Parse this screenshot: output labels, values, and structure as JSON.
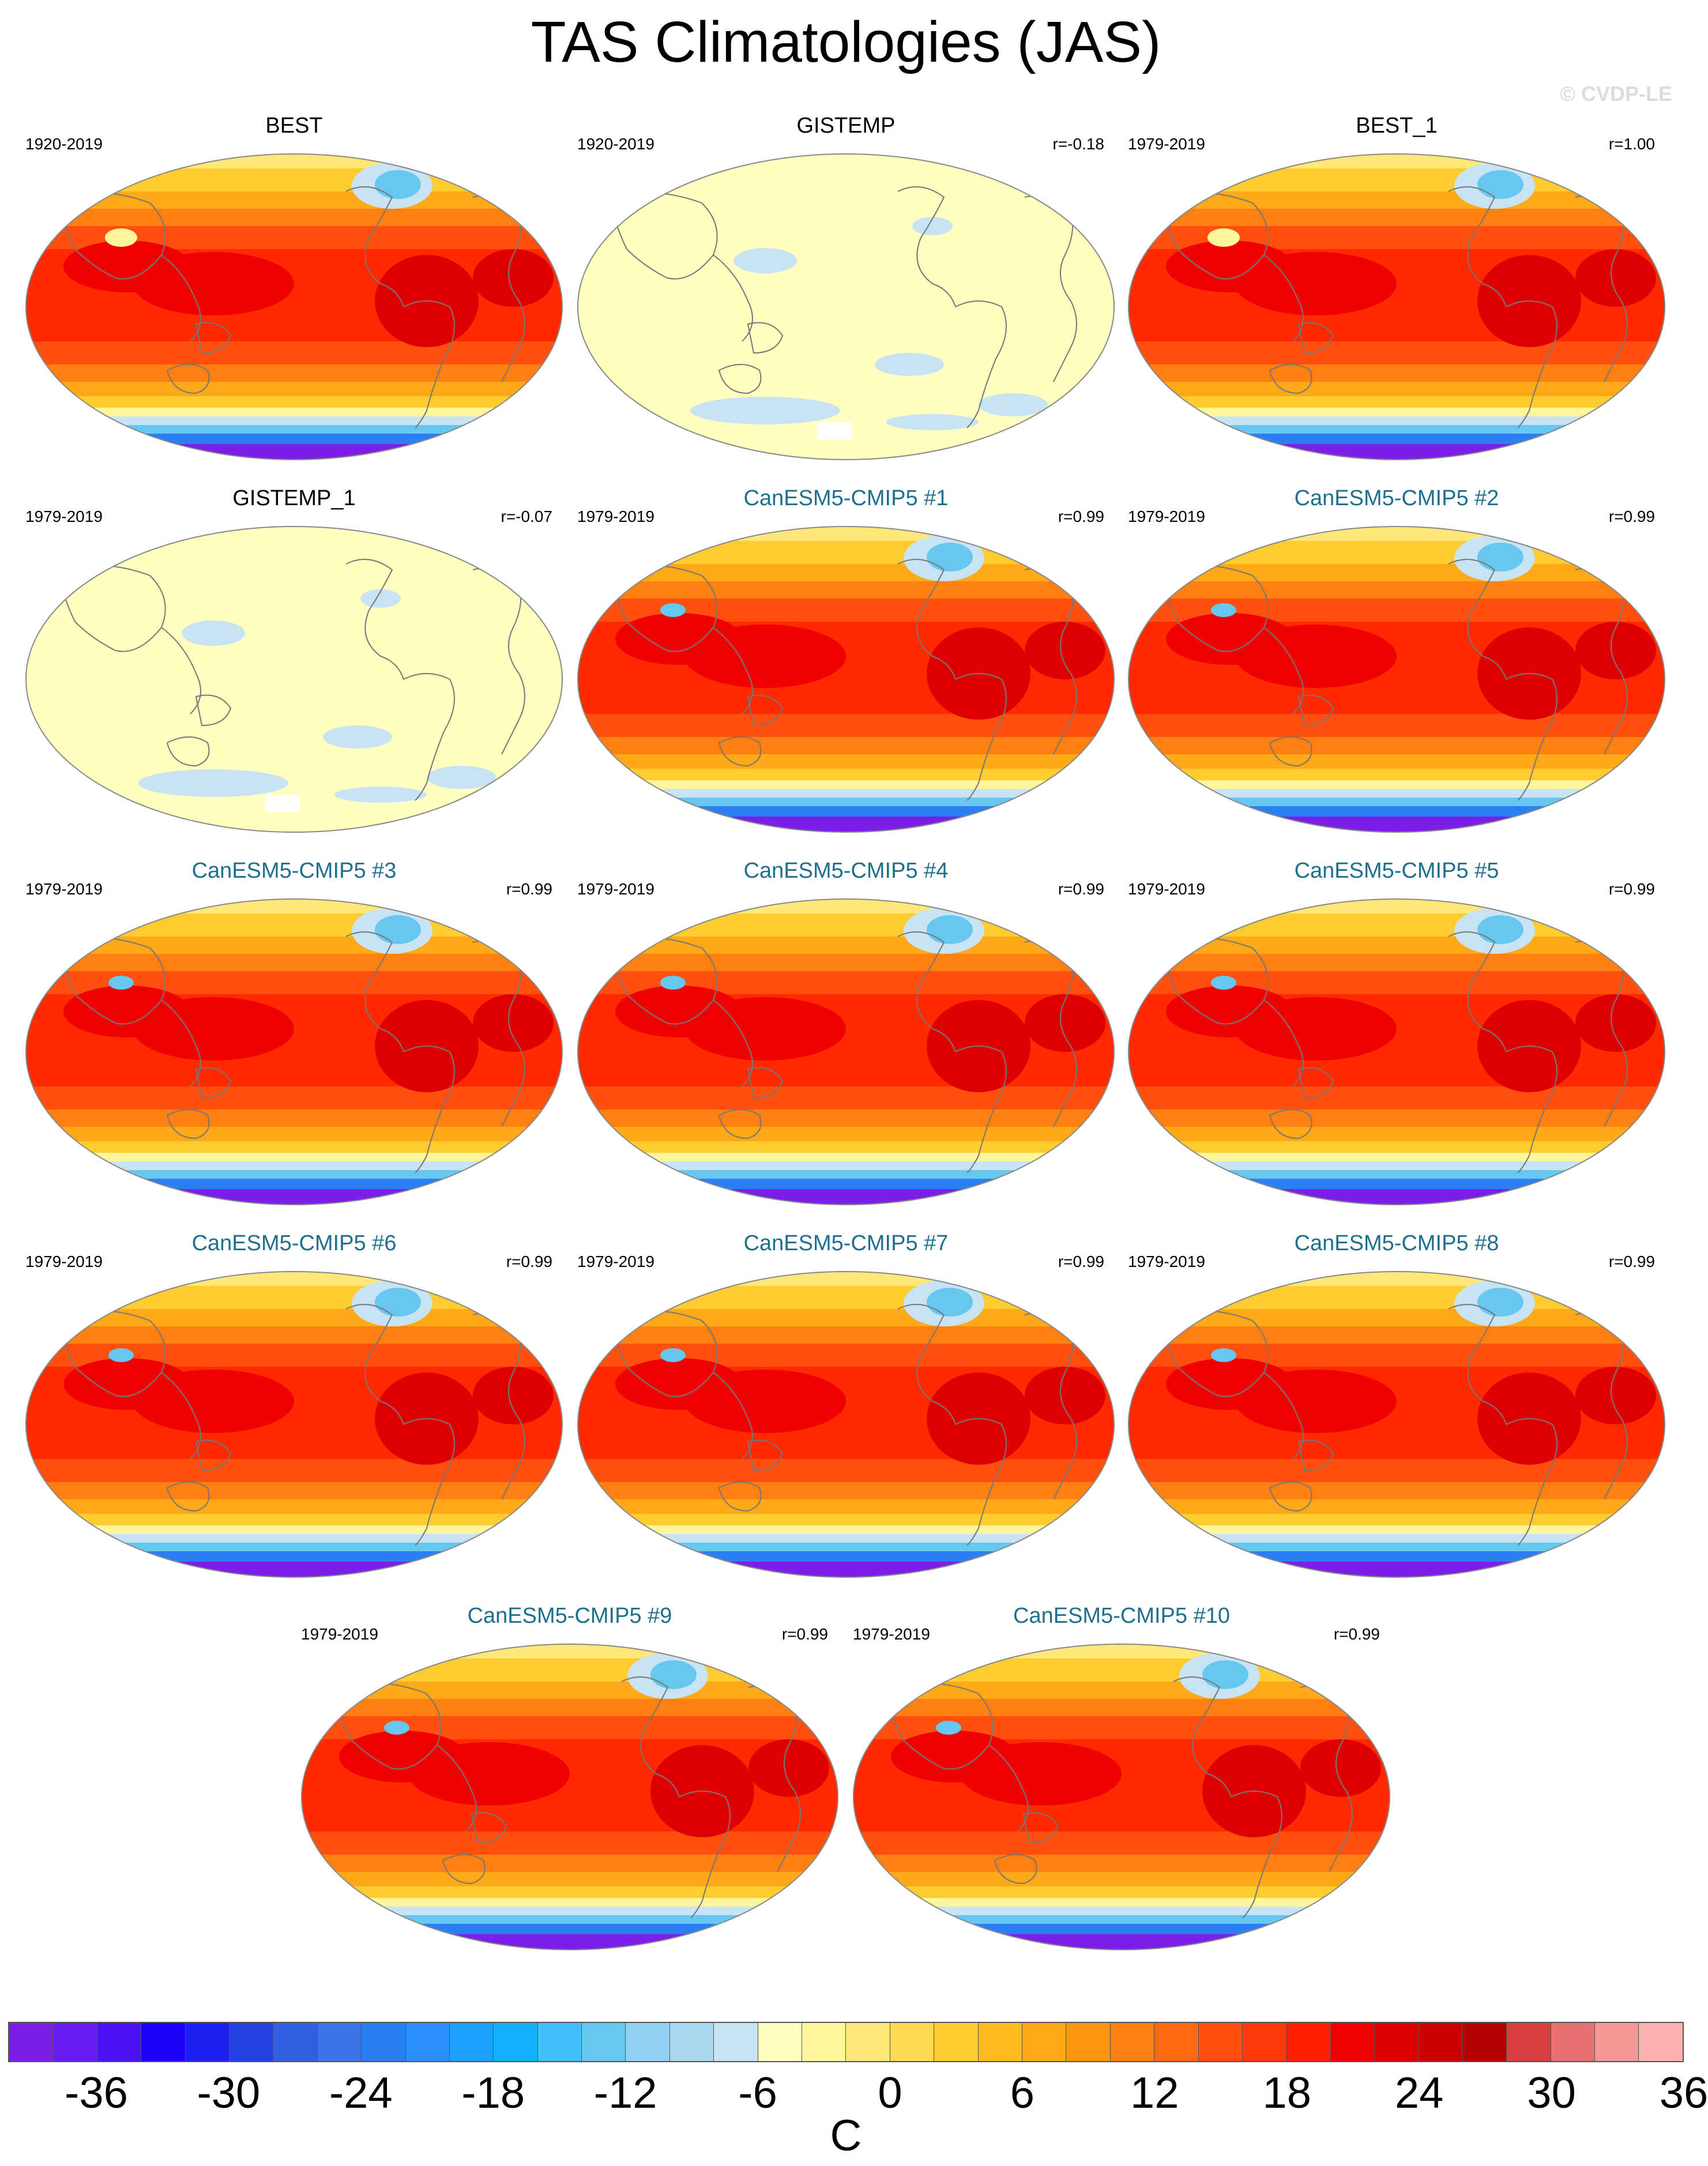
{
  "title": "TAS Climatologies (JAS)",
  "watermark": "© CVDP-LE",
  "colors": {
    "model_title": "#1e6f8e",
    "obs_title": "#000000"
  },
  "panels": [
    {
      "name": "BEST",
      "kind": "obs",
      "period": "1920-2019",
      "corr": "",
      "pattern": "obs-full"
    },
    {
      "name": "GISTEMP",
      "kind": "obs",
      "period": "1920-2019",
      "corr": "r=-0.18",
      "pattern": "anomaly"
    },
    {
      "name": "BEST_1",
      "kind": "obs",
      "period": "1979-2019",
      "corr": "r=1.00",
      "pattern": "obs-full"
    },
    {
      "name": "GISTEMP_1",
      "kind": "obs",
      "period": "1979-2019",
      "corr": "r=-0.07",
      "pattern": "anomaly"
    },
    {
      "name": "CanESM5-CMIP5 #1",
      "kind": "model",
      "period": "1979-2019",
      "corr": "r=0.99",
      "pattern": "model"
    },
    {
      "name": "CanESM5-CMIP5 #2",
      "kind": "model",
      "period": "1979-2019",
      "corr": "r=0.99",
      "pattern": "model"
    },
    {
      "name": "CanESM5-CMIP5 #3",
      "kind": "model",
      "period": "1979-2019",
      "corr": "r=0.99",
      "pattern": "model"
    },
    {
      "name": "CanESM5-CMIP5 #4",
      "kind": "model",
      "period": "1979-2019",
      "corr": "r=0.99",
      "pattern": "model"
    },
    {
      "name": "CanESM5-CMIP5 #5",
      "kind": "model",
      "period": "1979-2019",
      "corr": "r=0.99",
      "pattern": "model"
    },
    {
      "name": "CanESM5-CMIP5 #6",
      "kind": "model",
      "period": "1979-2019",
      "corr": "r=0.99",
      "pattern": "model"
    },
    {
      "name": "CanESM5-CMIP5 #7",
      "kind": "model",
      "period": "1979-2019",
      "corr": "r=0.99",
      "pattern": "model"
    },
    {
      "name": "CanESM5-CMIP5 #8",
      "kind": "model",
      "period": "1979-2019",
      "corr": "r=0.99",
      "pattern": "model"
    },
    {
      "name": "CanESM5-CMIP5 #9",
      "kind": "model",
      "period": "1979-2019",
      "corr": "r=0.99",
      "pattern": "model"
    },
    {
      "name": "CanESM5-CMIP5 #10",
      "kind": "model",
      "period": "1979-2019",
      "corr": "r=0.99",
      "pattern": "model"
    }
  ],
  "colorbar": {
    "units": "C",
    "tick_labels": [
      "-36",
      "-30",
      "-24",
      "-18",
      "-12",
      "-6",
      "0",
      "6",
      "12",
      "18",
      "24",
      "30",
      "36"
    ],
    "colors": [
      "#7b1fe8",
      "#6a1cf0",
      "#4a12f5",
      "#1a00f8",
      "#1a20f0",
      "#2440e0",
      "#3060e0",
      "#3a74e8",
      "#2a80f2",
      "#2a90ff",
      "#1aa0ff",
      "#10b0ff",
      "#40c0f8",
      "#66c8f0",
      "#90d0f0",
      "#a8d8f0",
      "#c8e4f4",
      "#ffffc0",
      "#fff59a",
      "#ffe878",
      "#ffda50",
      "#ffcc30",
      "#ffbb20",
      "#ffa818",
      "#ff9410",
      "#ff8010",
      "#ff6a10",
      "#ff5010",
      "#ff3a0a",
      "#ff2000",
      "#f00000",
      "#dd0000",
      "#cc0000",
      "#b40000",
      "#d84040",
      "#e87070",
      "#f49898",
      "#ffb0b0"
    ]
  }
}
